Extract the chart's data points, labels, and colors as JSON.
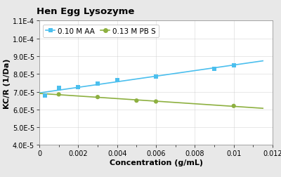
{
  "title": "Hen Egg Lysozyme",
  "xlabel": "Concentration (g/mL)",
  "ylabel": "KC/R (1/Da)",
  "xlim": [
    0,
    0.012
  ],
  "ylim": [
    4e-05,
    0.00011
  ],
  "xticks": [
    0,
    0.002,
    0.004,
    0.006,
    0.008,
    0.01,
    0.012
  ],
  "yticks": [
    4e-05,
    5e-05,
    6e-05,
    7e-05,
    8e-05,
    9e-05,
    0.0001,
    0.00011
  ],
  "ytick_labels": [
    "4.0E-5",
    "5.0E-5",
    "6.0E-5",
    "7.0E-5",
    "8.0E-5",
    "9.0E-5",
    "1.0E-4",
    "1.1E-4"
  ],
  "xtick_labels": [
    "0",
    "0.002",
    "0.004",
    "0.006",
    "0.008",
    "0.01",
    "0.012"
  ],
  "series": [
    {
      "label": "0.10 M AA",
      "marker": "s",
      "color": "#4BBFEE",
      "line_color": "#4BBFEE",
      "x": [
        0.0003,
        0.001,
        0.002,
        0.003,
        0.004,
        0.006,
        0.009,
        0.01
      ],
      "y": [
        6.8e-05,
        7.2e-05,
        7.25e-05,
        7.45e-05,
        7.65e-05,
        7.85e-05,
        8.3e-05,
        8.5e-05
      ]
    },
    {
      "label": "0.13 M PB S",
      "marker": "o",
      "color": "#8DB040",
      "line_color": "#8DB040",
      "x": [
        0.001,
        0.003,
        0.005,
        0.006,
        0.01
      ],
      "y": [
        6.85e-05,
        6.7e-05,
        6.5e-05,
        6.45e-05,
        6.2e-05
      ]
    }
  ],
  "background_color": "#E8E8E8",
  "plot_bg_color": "#FFFFFF",
  "legend_fontsize": 7.5,
  "title_fontsize": 9.5,
  "axis_label_fontsize": 8,
  "tick_fontsize": 7
}
